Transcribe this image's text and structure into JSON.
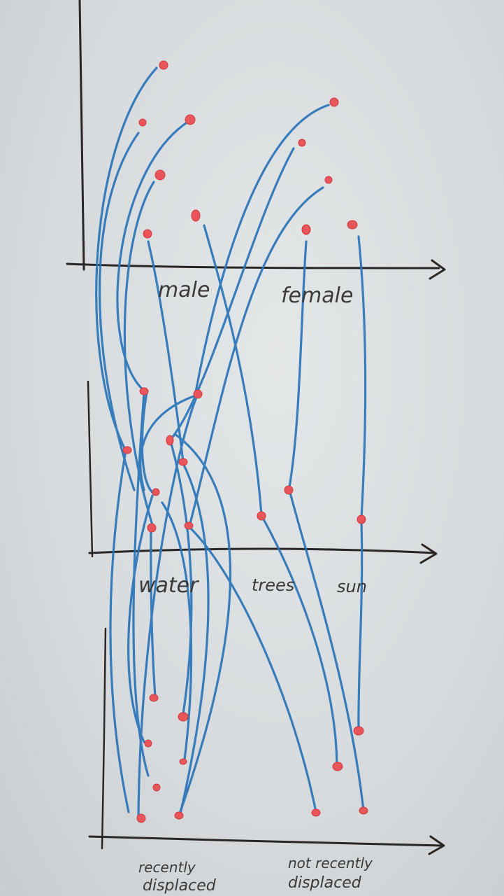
{
  "panels": {
    "top": {
      "labels": [
        "male",
        "female"
      ]
    },
    "middle": {
      "labels": [
        "water",
        "trees",
        "sun"
      ]
    },
    "bottom": {
      "labels": [
        "recently",
        "displaced",
        "not recently",
        "displaced"
      ]
    }
  },
  "colors": {
    "line": "#2a74b8",
    "dot": "#e8555a",
    "axis": "#2b2626",
    "text": "#3a3a3a"
  }
}
